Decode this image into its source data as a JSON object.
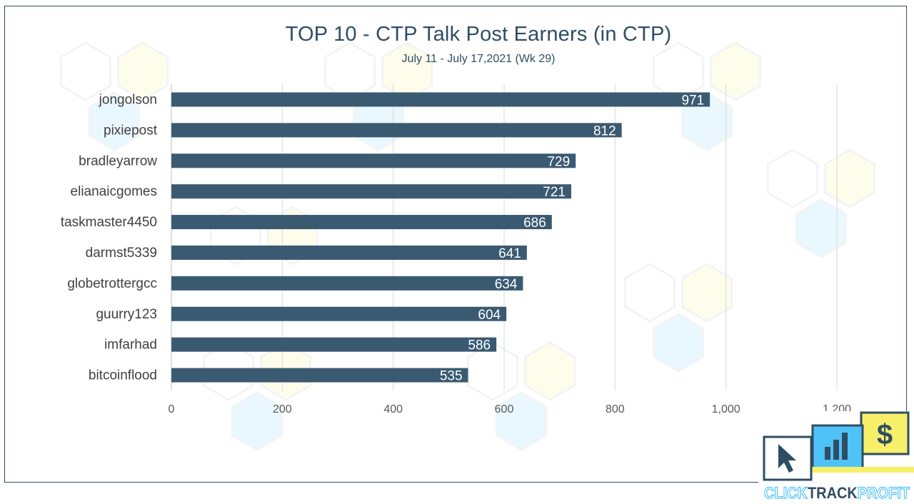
{
  "chart_data": {
    "type": "bar",
    "orientation": "horizontal",
    "title": "TOP 10 - CTP Talk Post Earners (in CTP)",
    "subtitle": "July 11 - July 17,2021 (Wk 29)",
    "categories": [
      "jongolson",
      "pixiepost",
      "bradleyarrow",
      "elianaicgomes",
      "taskmaster4450",
      "darmst5339",
      "globetrottergcc",
      "guurry123",
      "imfarhad",
      "bitcoinflood"
    ],
    "values": [
      971,
      812,
      729,
      721,
      686,
      641,
      634,
      604,
      586,
      535
    ],
    "xlim": [
      0,
      1200
    ],
    "xticks": [
      "0",
      "200",
      "400",
      "600",
      "800",
      "1,000",
      "1,200"
    ],
    "grid": "vertical",
    "bar_color": "#3a5a72",
    "label_color": "#ffffff"
  },
  "logo": {
    "text_a": "CLICK",
    "text_b": "TRACK",
    "text_c": "PROFIT",
    "dollar": "$"
  },
  "colors": {
    "accent": "#2f4d63",
    "logo_blue": "#4fc3f7",
    "logo_yellow": "#f7ef6a"
  }
}
